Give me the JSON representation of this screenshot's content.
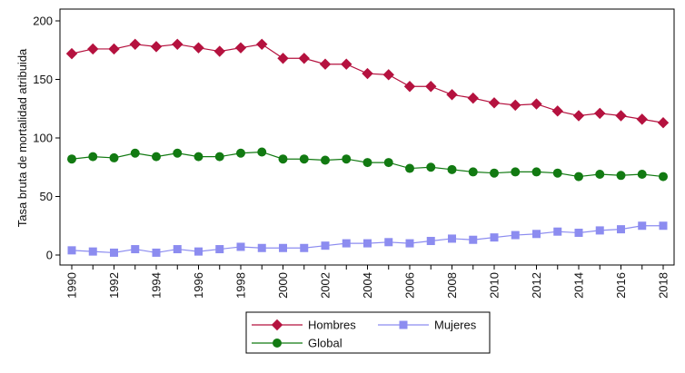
{
  "chart_data": {
    "type": "line",
    "title": "",
    "xlabel": "",
    "ylabel": "Tasa bruta de mortalidad atribuida",
    "xlim": [
      1990,
      2018
    ],
    "ylim": [
      0,
      200
    ],
    "xticks": [
      1990,
      1992,
      1994,
      1996,
      1998,
      2000,
      2002,
      2004,
      2006,
      2008,
      2010,
      2012,
      2014,
      2016,
      2018
    ],
    "yticks": [
      0,
      50,
      100,
      150,
      200
    ],
    "grid": false,
    "legend_position": "bottom",
    "x": [
      1990,
      1991,
      1992,
      1993,
      1994,
      1995,
      1996,
      1997,
      1998,
      1999,
      2000,
      2001,
      2002,
      2003,
      2004,
      2005,
      2006,
      2007,
      2008,
      2009,
      2010,
      2011,
      2012,
      2013,
      2014,
      2015,
      2016,
      2017,
      2018
    ],
    "series": [
      {
        "name": "Hombres",
        "color": "#b5123f",
        "marker": "diamond",
        "values": [
          172,
          176,
          176,
          180,
          178,
          180,
          177,
          174,
          177,
          180,
          168,
          168,
          163,
          163,
          155,
          154,
          144,
          144,
          137,
          134,
          130,
          128,
          129,
          123,
          119,
          121,
          119,
          116,
          113
        ]
      },
      {
        "name": "Mujeres",
        "color": "#8c8cf0",
        "marker": "square",
        "values": [
          4,
          3,
          2,
          5,
          2,
          5,
          3,
          5,
          7,
          6,
          6,
          6,
          8,
          10,
          10,
          11,
          10,
          12,
          14,
          13,
          15,
          17,
          18,
          20,
          19,
          21,
          22,
          25,
          25
        ]
      },
      {
        "name": "Global",
        "color": "#127a12",
        "marker": "circle",
        "values": [
          82,
          84,
          83,
          87,
          84,
          87,
          84,
          84,
          87,
          88,
          82,
          82,
          81,
          82,
          79,
          79,
          74,
          75,
          73,
          71,
          70,
          71,
          71,
          70,
          67,
          69,
          68,
          69,
          67
        ]
      }
    ]
  }
}
